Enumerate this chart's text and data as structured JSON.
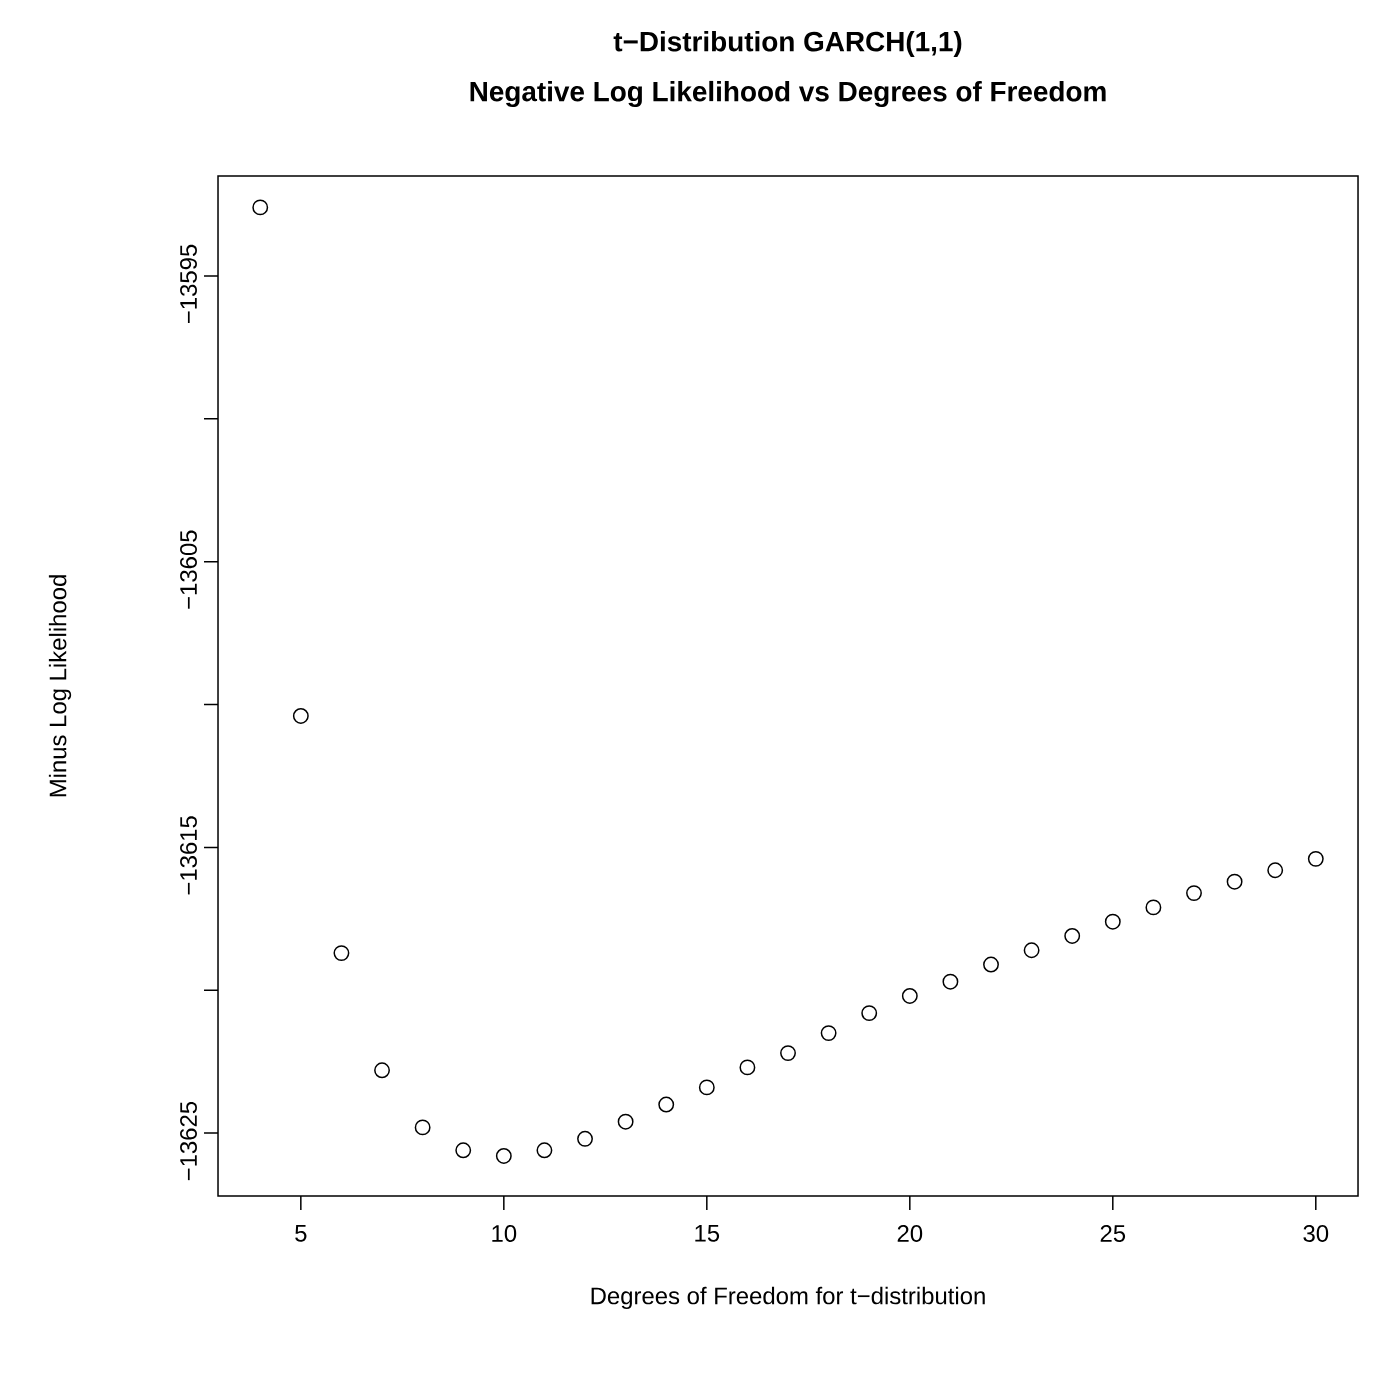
{
  "chart_data": {
    "type": "scatter",
    "title": "t−Distribution GARCH(1,1)",
    "subtitle": "Negative Log Likelihood vs  Degrees of Freedom",
    "xlabel": "Degrees of Freedom for t−distribution",
    "ylabel": "Minus Log Likelihood",
    "x": [
      4,
      5,
      6,
      7,
      8,
      9,
      10,
      11,
      12,
      13,
      14,
      15,
      16,
      17,
      18,
      19,
      20,
      21,
      22,
      23,
      24,
      25,
      26,
      27,
      28,
      29,
      30
    ],
    "series": [
      {
        "color": "#000000",
        "values": [
          -13592.6,
          -13610.4,
          -13618.7,
          -13622.8,
          -13624.8,
          -13625.6,
          -13625.8,
          -13625.6,
          -13625.2,
          -13624.6,
          -13624.0,
          -13623.4,
          -13622.7,
          -13622.2,
          -13621.5,
          -13620.8,
          -13620.2,
          -13619.7,
          -13619.1,
          -13618.6,
          -13618.1,
          -13617.6,
          -13617.1,
          -13616.6,
          -13616.2,
          -13615.8,
          -13615.4
        ]
      }
    ],
    "xlim": [
      2.96,
      31.04
    ],
    "ylim": [
      -13627.2,
      -13591.5
    ],
    "xticks": [
      5,
      10,
      15,
      20,
      25,
      30
    ],
    "yticks": [
      {
        "value": -13625,
        "label": "−13625"
      },
      {
        "value": -13620,
        "label": null
      },
      {
        "value": -13615,
        "label": "−13615"
      },
      {
        "value": -13610,
        "label": null
      },
      {
        "value": -13605,
        "label": "−13605"
      },
      {
        "value": -13600,
        "label": null
      },
      {
        "value": -13595,
        "label": "−13595"
      }
    ],
    "marker": "circle",
    "grid": false
  }
}
